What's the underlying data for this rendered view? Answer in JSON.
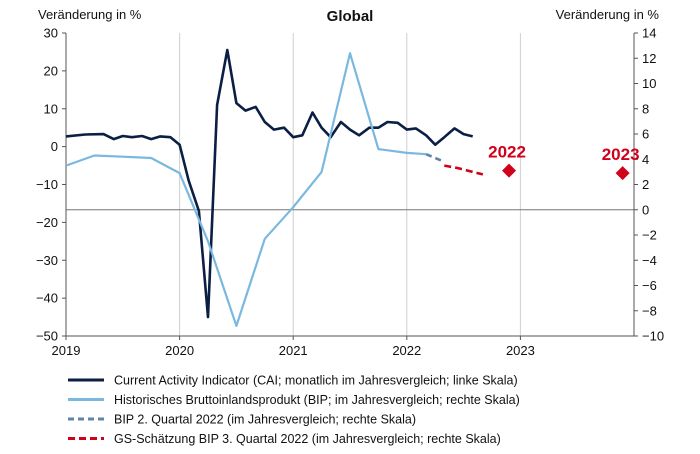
{
  "chart_data": {
    "type": "line",
    "title": "Global",
    "y_left_label": "Veränderung in %",
    "y_right_label": "Veränderung in %",
    "y_left_lim": [
      -50,
      30
    ],
    "y_right_lim": [
      -10,
      14
    ],
    "y_left_ticks": [
      30,
      20,
      10,
      0,
      -10,
      -20,
      -30,
      -40,
      -50
    ],
    "y_right_ticks": [
      14,
      12,
      10,
      8,
      6,
      4,
      2,
      0,
      -2,
      -4,
      -6,
      -8,
      -10
    ],
    "x_lim": [
      2019.0,
      2024.0
    ],
    "x_ticks": [
      {
        "value": 2019,
        "label": "2019"
      },
      {
        "value": 2020,
        "label": "2020"
      },
      {
        "value": 2021,
        "label": "2021"
      },
      {
        "value": 2022,
        "label": "2022"
      },
      {
        "value": 2023,
        "label": "2023"
      }
    ],
    "zero_line_right_axis": 0,
    "series": [
      {
        "name": "Current Activity Indicator (CAI; monatlich im Jahresvergleich; linke Skala)",
        "axis": "left",
        "color": "#0b1f45",
        "dash": "",
        "x": [
          2019.0,
          2019.17,
          2019.33,
          2019.42,
          2019.5,
          2019.58,
          2019.67,
          2019.75,
          2019.83,
          2019.92,
          2020.0,
          2020.08,
          2020.17,
          2020.25,
          2020.33,
          2020.42,
          2020.5,
          2020.58,
          2020.67,
          2020.75,
          2020.83,
          2020.92,
          2021.0,
          2021.08,
          2021.17,
          2021.25,
          2021.33,
          2021.42,
          2021.5,
          2021.58,
          2021.67,
          2021.75,
          2021.83,
          2021.92,
          2022.0,
          2022.08,
          2022.17,
          2022.25,
          2022.33,
          2022.42,
          2022.5,
          2022.58
        ],
        "y": [
          2.7,
          3.2,
          3.3,
          2.0,
          2.8,
          2.5,
          2.8,
          2.0,
          2.7,
          2.5,
          0.5,
          -9.0,
          -17.0,
          -45.0,
          11.0,
          25.5,
          11.5,
          9.5,
          10.5,
          6.5,
          4.5,
          5.0,
          2.5,
          3.0,
          9.0,
          5.0,
          2.5,
          6.5,
          4.5,
          3.0,
          5.0,
          5.0,
          6.5,
          6.3,
          4.5,
          4.8,
          3.0,
          0.5,
          2.5,
          4.8,
          3.3,
          2.7
        ]
      },
      {
        "name": "Historisches Bruttoinlandsprodukt (BIP; im Jahresvergleich; rechte Skala)",
        "axis": "right",
        "color": "#7bb8e0",
        "dash": "",
        "x": [
          2019.0,
          2019.25,
          2019.5,
          2019.75,
          2020.0,
          2020.25,
          2020.5,
          2020.75,
          2021.0,
          2021.25,
          2021.5,
          2021.75,
          2022.0,
          2022.17
        ],
        "y": [
          3.5,
          4.3,
          4.2,
          4.1,
          2.9,
          -2.5,
          -9.2,
          -2.3,
          0.2,
          3.0,
          12.4,
          4.8,
          4.5,
          4.4
        ]
      },
      {
        "name": "BIP 2. Quartal 2022 (im Jahresvergleich; rechte Skala)",
        "axis": "right",
        "color": "#5f86a8",
        "dash": "6 4",
        "x": [
          2022.17,
          2022.33
        ],
        "y": [
          4.4,
          3.8
        ]
      },
      {
        "name": "GS-Schätzung BIP 3. Quartal 2022 (im Jahresvergleich; rechte Skala)",
        "axis": "right",
        "color": "#d0021b",
        "dash": "7 4",
        "x": [
          2022.33,
          2022.45,
          2022.58,
          2022.67
        ],
        "y": [
          3.5,
          3.3,
          3.0,
          2.8
        ]
      }
    ],
    "markers": [
      {
        "label": "2022",
        "x": 2022.9,
        "y": 3.1,
        "axis": "right",
        "color": "#d0021b"
      },
      {
        "label": "2023",
        "x": 2023.9,
        "y": 2.9,
        "axis": "right",
        "color": "#d0021b"
      }
    ]
  }
}
